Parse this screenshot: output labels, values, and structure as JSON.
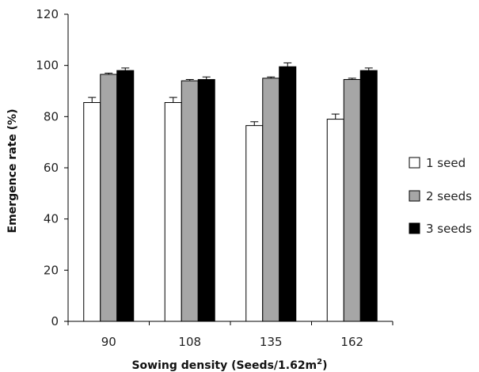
{
  "chart_data": {
    "type": "bar",
    "categories": [
      "90",
      "108",
      "135",
      "162"
    ],
    "series": [
      {
        "name": "1 seed",
        "values": [
          85.5,
          85.5,
          76.5,
          79.0
        ],
        "errors": [
          2.0,
          2.0,
          1.5,
          2.0
        ],
        "color": "#ffffff"
      },
      {
        "name": "2 seeds",
        "values": [
          96.5,
          94.0,
          95.0,
          94.5
        ],
        "errors": [
          0.5,
          0.5,
          0.5,
          0.5
        ],
        "color": "#a6a6a6"
      },
      {
        "name": "3 seeds",
        "values": [
          98.0,
          94.5,
          99.5,
          98.0
        ],
        "errors": [
          1.0,
          1.0,
          1.5,
          1.0
        ],
        "color": "#000000"
      }
    ],
    "xlabel": "Sowing density (Seeds/1.62m",
    "xlabel_sup": "2",
    "xlabel_end": ")",
    "ylabel": "Emergence rate (%)",
    "ylim": [
      0,
      120
    ],
    "yticks": [
      "0",
      "20",
      "40",
      "60",
      "80",
      "100",
      "120"
    ],
    "grid": false,
    "legend_position": "right"
  }
}
